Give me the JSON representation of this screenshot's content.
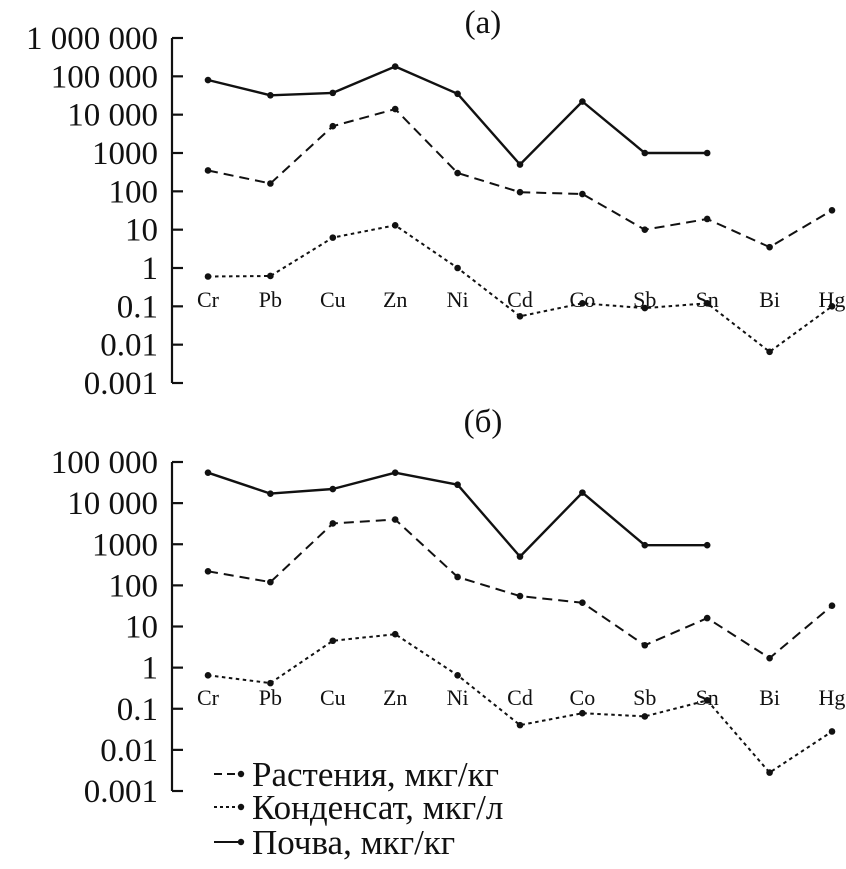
{
  "chart_data": [
    {
      "type": "line",
      "panel_label": "(а)",
      "y_scale": "log",
      "ylim": [
        0.001,
        1000000
      ],
      "y_ticks": [
        {
          "value": 1000000,
          "label": "1 000 000"
        },
        {
          "value": 100000,
          "label": "100 000"
        },
        {
          "value": 10000,
          "label": "10 000"
        },
        {
          "value": 1000,
          "label": "1000"
        },
        {
          "value": 100,
          "label": "100"
        },
        {
          "value": 10,
          "label": "10"
        },
        {
          "value": 1,
          "label": "1"
        },
        {
          "value": 0.1,
          "label": "0.1"
        },
        {
          "value": 0.01,
          "label": "0.01"
        },
        {
          "value": 0.001,
          "label": "0.001"
        }
      ],
      "categories": [
        "Cr",
        "Pb",
        "Cu",
        "Zn",
        "Ni",
        "Cd",
        "Co",
        "Sb",
        "Sn",
        "Bi",
        "Hg"
      ],
      "series": [
        {
          "key": "soil",
          "style": "solid",
          "values": [
            80000,
            32000,
            37000,
            180000,
            35000,
            500,
            22000,
            1000,
            1000,
            null,
            null
          ]
        },
        {
          "key": "plants",
          "style": "dashed",
          "values": [
            350,
            160,
            5000,
            14000,
            300,
            95,
            85,
            10,
            19,
            3.5,
            32
          ]
        },
        {
          "key": "condensate",
          "style": "dotted",
          "values": [
            0.6,
            0.62,
            6.2,
            13,
            1,
            0.055,
            0.12,
            0.09,
            0.12,
            0.0065,
            0.1
          ]
        }
      ]
    },
    {
      "type": "line",
      "panel_label": "(б)",
      "y_scale": "log",
      "ylim": [
        0.001,
        100000
      ],
      "y_ticks": [
        {
          "value": 100000,
          "label": "100 000"
        },
        {
          "value": 10000,
          "label": "10 000"
        },
        {
          "value": 1000,
          "label": "1000"
        },
        {
          "value": 100,
          "label": "100"
        },
        {
          "value": 10,
          "label": "10"
        },
        {
          "value": 1,
          "label": "1"
        },
        {
          "value": 0.1,
          "label": "0.1"
        },
        {
          "value": 0.01,
          "label": "0.01"
        },
        {
          "value": 0.001,
          "label": "0.001"
        }
      ],
      "categories": [
        "Cr",
        "Pb",
        "Cu",
        "Zn",
        "Ni",
        "Cd",
        "Co",
        "Sb",
        "Sn",
        "Bi",
        "Hg"
      ],
      "series": [
        {
          "key": "soil",
          "style": "solid",
          "values": [
            55000,
            17000,
            22000,
            55000,
            28000,
            500,
            18000,
            950,
            950,
            null,
            null
          ]
        },
        {
          "key": "plants",
          "style": "dashed",
          "values": [
            220,
            120,
            3200,
            4000,
            160,
            55,
            38,
            3.5,
            16,
            1.7,
            32
          ]
        },
        {
          "key": "condensate",
          "style": "dotted",
          "values": [
            0.65,
            0.42,
            4.5,
            6.5,
            0.65,
            0.04,
            0.078,
            0.065,
            0.16,
            0.0028,
            0.028
          ]
        }
      ]
    }
  ],
  "legend": [
    {
      "key": "plants",
      "style": "dashed",
      "label": "Растения, мкг/кг"
    },
    {
      "key": "condensate",
      "style": "dotted",
      "label": "Конденсат, мкг/л"
    },
    {
      "key": "soil",
      "style": "solid",
      "label": "Почва, мкг/кг"
    }
  ],
  "colors": {
    "line": "#111111",
    "background": "#ffffff"
  }
}
